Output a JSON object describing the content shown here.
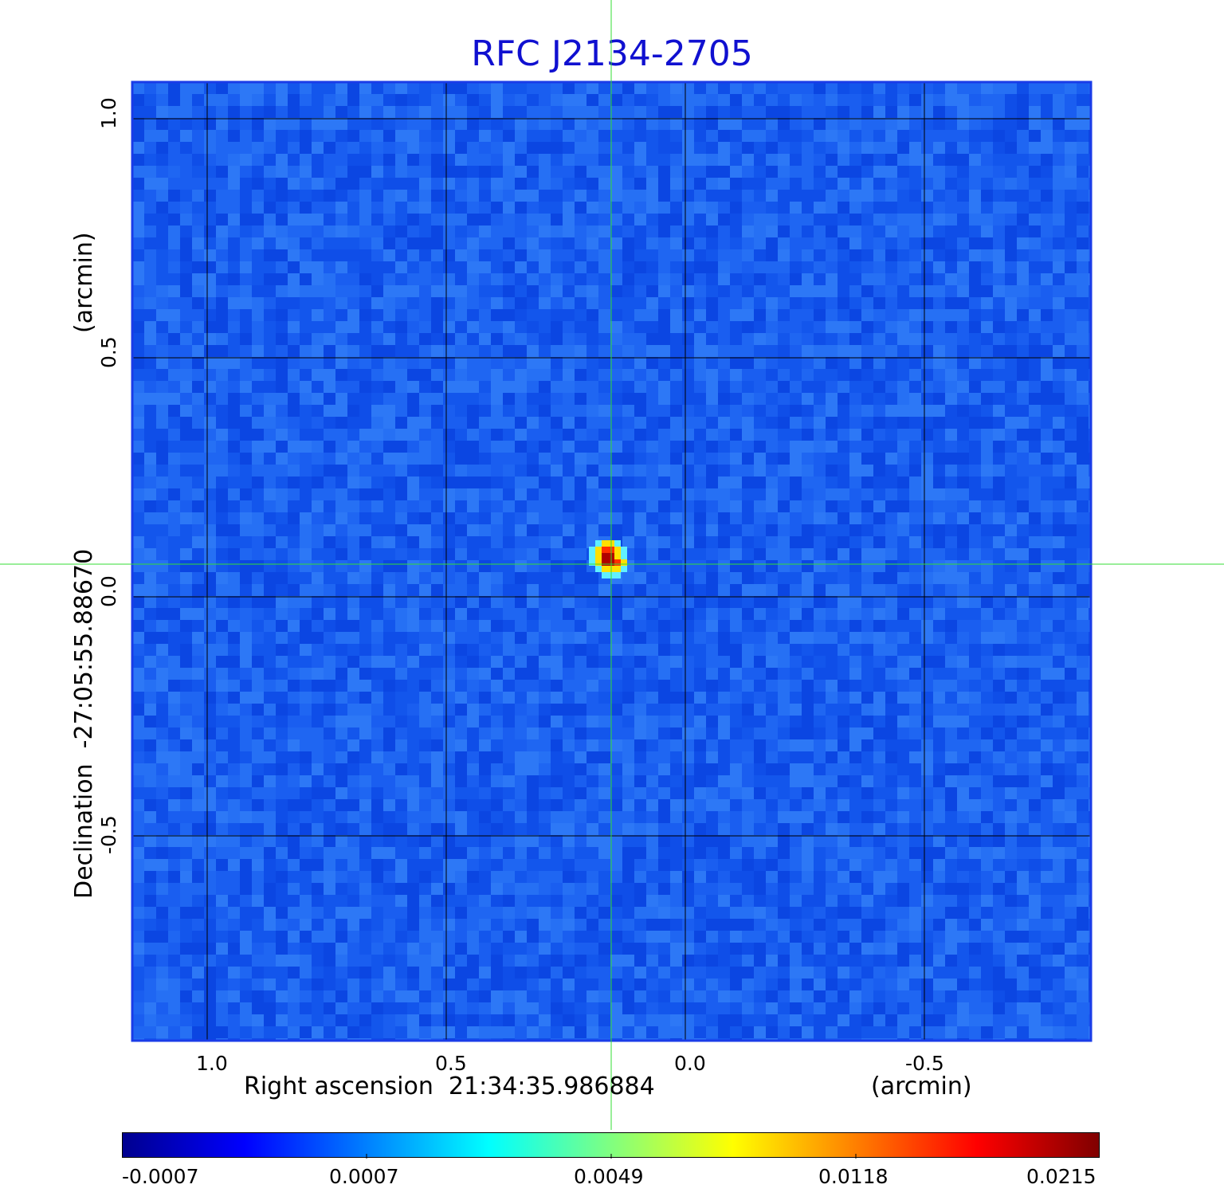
{
  "title": "RFC J2134-2705",
  "image": {
    "background_color": "#1a5ef0",
    "frame_color": "#1a3ce8",
    "grid_color": "#000000",
    "crosshair_color": "#33dd33",
    "source": {
      "core_colors": [
        "#b00000",
        "#ff3000",
        "#ffe000",
        "#60f0ff"
      ]
    }
  },
  "x_axis": {
    "label": "Right ascension  21:34:35.986884",
    "unit_label": "(arcmin)",
    "ticks": [
      "1.0",
      "0.5",
      "0.0",
      "-0.5"
    ]
  },
  "y_axis": {
    "label": "Declination  -27:05:55.88670",
    "unit_label": "(arcmin)",
    "ticks": [
      "1.0",
      "0.5",
      "0.0",
      "-0.5"
    ]
  },
  "colorbar": {
    "ticks": [
      "-0.0007",
      "0.0007",
      "0.0049",
      "0.0118",
      "0.0215"
    ],
    "colors": [
      "#00008f",
      "#0000ff",
      "#0080ff",
      "#00ffff",
      "#80ff80",
      "#ffff00",
      "#ff8000",
      "#ff0000",
      "#800000"
    ]
  }
}
